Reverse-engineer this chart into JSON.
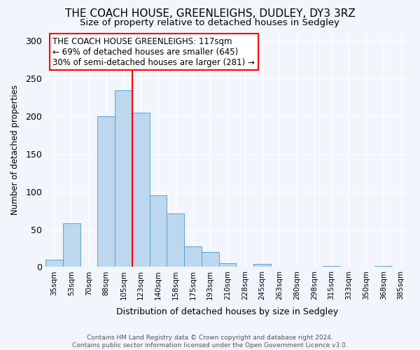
{
  "title": "THE COACH HOUSE, GREENLEIGHS, DUDLEY, DY3 3RZ",
  "subtitle": "Size of property relative to detached houses in Sedgley",
  "xlabel": "Distribution of detached houses by size in Sedgley",
  "ylabel": "Number of detached properties",
  "categories": [
    "35sqm",
    "53sqm",
    "70sqm",
    "88sqm",
    "105sqm",
    "123sqm",
    "140sqm",
    "158sqm",
    "175sqm",
    "193sqm",
    "210sqm",
    "228sqm",
    "245sqm",
    "263sqm",
    "280sqm",
    "298sqm",
    "315sqm",
    "333sqm",
    "350sqm",
    "368sqm",
    "385sqm"
  ],
  "values": [
    10,
    58,
    0,
    200,
    234,
    205,
    95,
    71,
    27,
    20,
    5,
    0,
    4,
    0,
    0,
    0,
    1,
    0,
    0,
    1,
    0
  ],
  "bar_color": "#BDD7EE",
  "bar_edge_color": "#5BA3D0",
  "redline_x": 5,
  "ylim": [
    0,
    310
  ],
  "yticks": [
    0,
    50,
    100,
    150,
    200,
    250,
    300
  ],
  "annotation_title": "THE COACH HOUSE GREENLEIGHS: 117sqm",
  "annotation_line1": "← 69% of detached houses are smaller (645)",
  "annotation_line2": "30% of semi-detached houses are larger (281) →",
  "footer_line1": "Contains HM Land Registry data © Crown copyright and database right 2024.",
  "footer_line2": "Contains public sector information licensed under the Open Government Licence v3.0.",
  "background_color": "#f2f5fb",
  "grid_color": "#ffffff",
  "title_fontsize": 11,
  "subtitle_fontsize": 9.5
}
